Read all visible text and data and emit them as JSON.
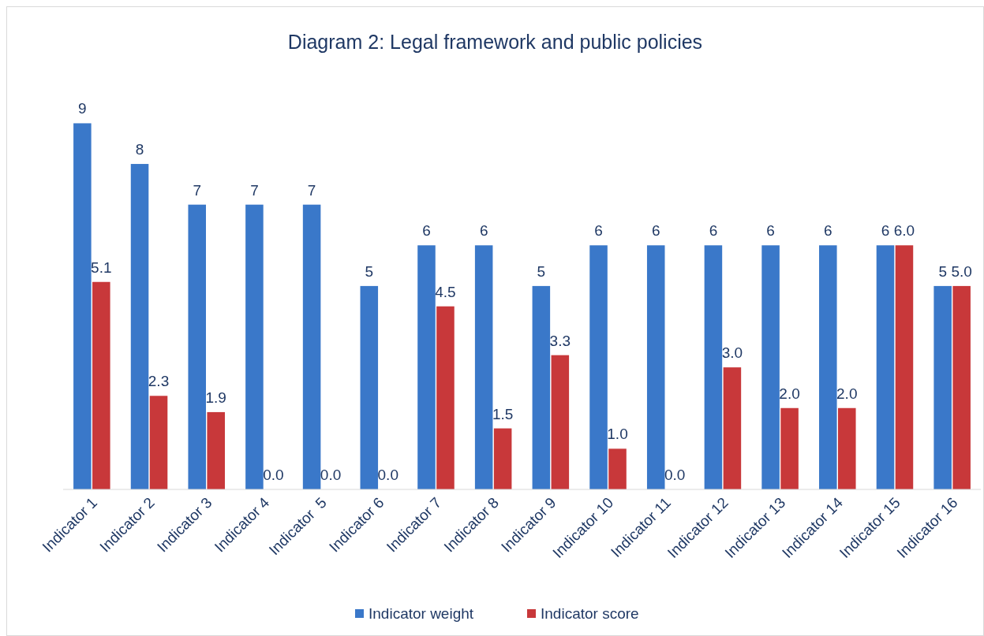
{
  "chart_data": {
    "type": "bar",
    "title": "Diagram 2: Legal framework and public policies",
    "categories": [
      "Indicator 1",
      "Indicator 2",
      "Indicator 3",
      "Indicator 4",
      "Indicator  5",
      "Indicator 6",
      "Indicator 7",
      "Indicator 8",
      "Indicator 9",
      "Indicator 10",
      "Indicator 11",
      "Indicator 12",
      "Indicator 13",
      "Indicator 14",
      "Indicator 15",
      "Indicator 16"
    ],
    "series": [
      {
        "name": "Indicator weight",
        "color": "#3a78c9",
        "values": [
          9,
          8,
          7,
          7,
          7,
          5,
          6,
          6,
          5,
          6,
          6,
          6,
          6,
          6,
          6,
          5
        ],
        "value_labels": [
          "9",
          "8",
          "7",
          "7",
          "7",
          "5",
          "6",
          "6",
          "5",
          "6",
          "6",
          "6",
          "6",
          "6",
          "6",
          "5"
        ]
      },
      {
        "name": "Indicator score",
        "color": "#c8383a",
        "values": [
          5.1,
          2.3,
          1.9,
          0,
          0,
          0,
          4.5,
          1.5,
          3.3,
          1.0,
          0,
          3.0,
          2.0,
          2.0,
          6.0,
          5.0
        ],
        "value_labels": [
          "5.1",
          "2.3",
          "1.9",
          "0.0",
          "0.0",
          "0.0",
          "4.5",
          "1.5",
          "3.3",
          "1.0",
          "0.0",
          "3.0",
          "2.0",
          "2.0",
          "6.0",
          "5.0"
        ]
      }
    ],
    "legend": "bottom"
  }
}
